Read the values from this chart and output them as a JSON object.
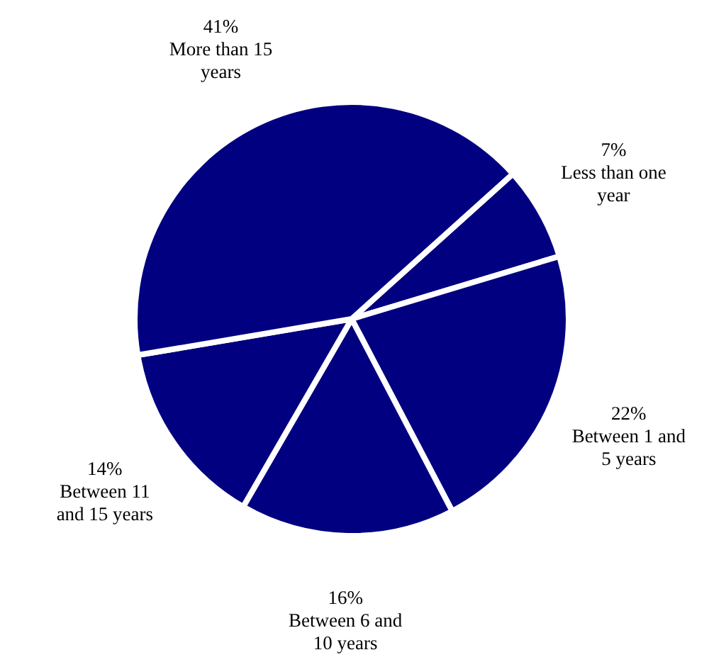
{
  "chart_data": {
    "type": "pie",
    "categories": [
      "Less than one year",
      "Between 1 and 5 years",
      "Between 6 and 10 years",
      "Between 11 and 15 years",
      "More than 15 years"
    ],
    "values": [
      7,
      22,
      16,
      14,
      41
    ],
    "colors": [
      "#000080",
      "#000080",
      "#000080",
      "#000080",
      "#000080"
    ],
    "value_labels": [
      "7%",
      "22%",
      "16%",
      "14%",
      "41%"
    ]
  }
}
